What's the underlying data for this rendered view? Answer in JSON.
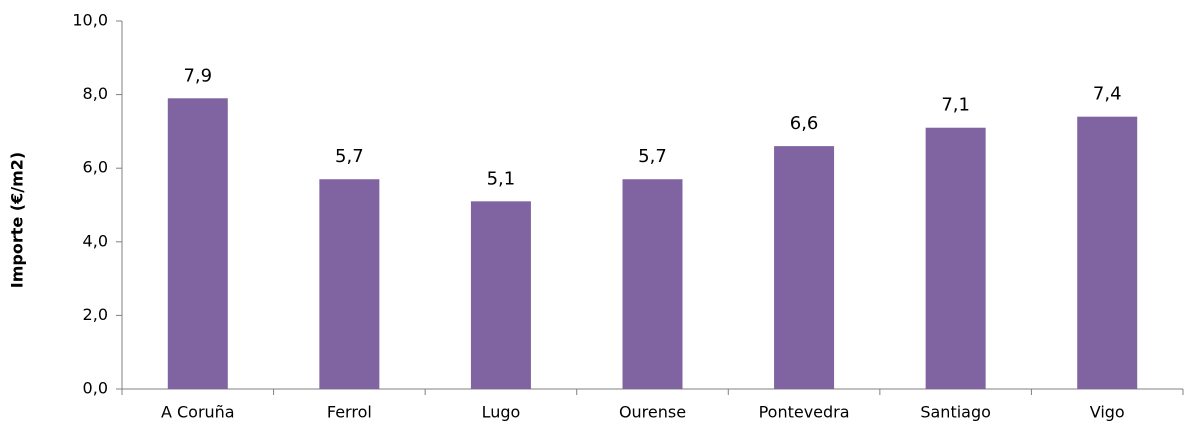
{
  "chart_data": {
    "type": "bar",
    "y_label": "Importe (€/m2)",
    "categories": [
      "A Coruña",
      "Ferrol",
      "Lugo",
      "Ourense",
      "Pontevedra",
      "Santiago",
      "Vigo"
    ],
    "values": [
      7.9,
      5.7,
      5.1,
      5.7,
      6.6,
      7.1,
      7.4
    ],
    "value_labels": [
      "7,9",
      "5,7",
      "5,1",
      "5,7",
      "6,6",
      "7,1",
      "7,4"
    ],
    "color": "#8064a2",
    "ylim": [
      0,
      10
    ],
    "yticks": [
      {
        "value": 0,
        "label": "0,0"
      },
      {
        "value": 2,
        "label": "2,0"
      },
      {
        "value": 4,
        "label": "4,0"
      },
      {
        "value": 6,
        "label": "6,0"
      },
      {
        "value": 8,
        "label": "8,0"
      },
      {
        "value": 10,
        "label": "10,0"
      }
    ],
    "grid": false
  }
}
